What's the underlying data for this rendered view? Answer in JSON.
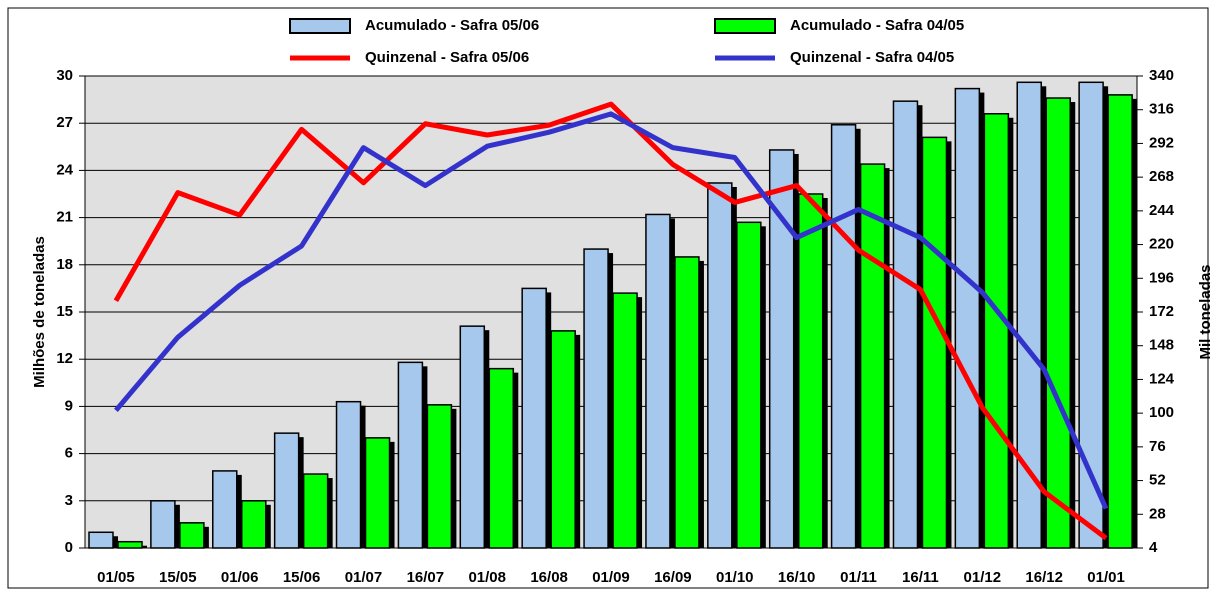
{
  "chart_data": {
    "type": "bar-line",
    "categories": [
      "01/05",
      "15/05",
      "01/06",
      "15/06",
      "01/07",
      "16/07",
      "01/08",
      "16/08",
      "01/09",
      "16/09",
      "01/10",
      "16/10",
      "01/11",
      "16/11",
      "01/12",
      "16/12",
      "01/01"
    ],
    "series": [
      {
        "name": "Acumulado - Safra 05/06",
        "type": "bar",
        "color": "#a6c8ec",
        "values": [
          1.0,
          3.0,
          4.9,
          7.3,
          9.3,
          11.8,
          14.1,
          16.5,
          19.0,
          21.2,
          23.2,
          25.3,
          26.9,
          28.4,
          29.2,
          29.6,
          29.6
        ]
      },
      {
        "name": "Acumulado - Safra 04/05",
        "type": "bar",
        "color": "#00ff00",
        "values": [
          0.4,
          1.6,
          3.0,
          4.7,
          7.0,
          9.1,
          11.4,
          13.8,
          16.2,
          18.5,
          20.7,
          22.5,
          24.4,
          26.1,
          27.6,
          28.6,
          28.8
        ]
      },
      {
        "name": "Quinzenal - Safra 05/06",
        "type": "line",
        "axis": "y2",
        "color": "#ff0000",
        "values": [
          180,
          257,
          241,
          302,
          264,
          306,
          298,
          305,
          320,
          277,
          250,
          262,
          216,
          188,
          104,
          44,
          11
        ]
      },
      {
        "name": "Quinzenal - Safra 04/05",
        "type": "line",
        "axis": "y2",
        "color": "#3333cc",
        "values": [
          102,
          154,
          191,
          219,
          289,
          262,
          290,
          300,
          313,
          289,
          282,
          225,
          245,
          225,
          186,
          131,
          32
        ]
      }
    ],
    "ylabel": "Milhões de toneladas",
    "y2label": "Mil toneladas",
    "ylim": [
      0,
      30
    ],
    "yticks": [
      0,
      3,
      6,
      9,
      12,
      15,
      18,
      21,
      24,
      27,
      30
    ],
    "y2lim": [
      4,
      340
    ],
    "y2ticks": [
      4,
      28,
      52,
      76,
      100,
      124,
      148,
      172,
      196,
      220,
      244,
      268,
      292,
      316,
      340
    ],
    "grid": true,
    "legend": "top"
  }
}
